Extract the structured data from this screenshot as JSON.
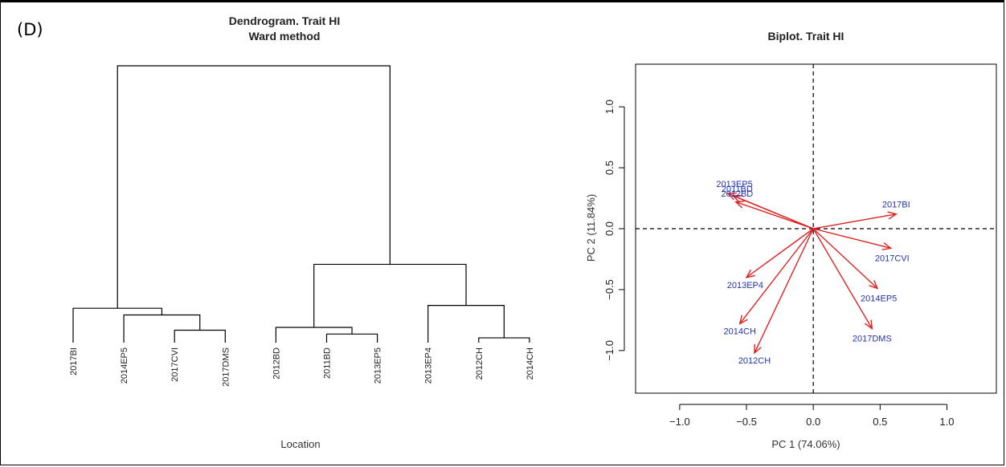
{
  "panel_label": "(D)",
  "chart_data": [
    {
      "type": "dendrogram",
      "title": "Dendrogram. Trait HI",
      "subtitle": "Ward method",
      "xlabel": "Location",
      "leaves": [
        "2017BI",
        "2014EP5",
        "2017CVI",
        "2017DMS",
        "2012BD",
        "2011BD",
        "2013EP5",
        "2013EP4",
        "2012CH",
        "2014CH"
      ],
      "merges": [
        {
          "a": "2012CH",
          "b": "2014CH",
          "height": 0.05
        },
        {
          "a": "2011BD",
          "b": "2013EP5",
          "height": 0.09
        },
        {
          "a": "2017CVI",
          "b": "2017DMS",
          "height": 0.13
        },
        {
          "a": "2012BD",
          "b": "(2011BD,2013EP5)",
          "height": 0.16
        },
        {
          "a": "2014EP5",
          "b": "(2017CVI,2017DMS)",
          "height": 0.29
        },
        {
          "a": "2017BI",
          "b": "(2014EP5,2017CVI,2017DMS)",
          "height": 0.36
        },
        {
          "a": "2013EP4",
          "b": "(2012CH,2014CH)",
          "height": 0.39
        },
        {
          "a": "(2012BD,2011BD,2013EP5)",
          "b": "(2013EP4,2012CH,2014CH)",
          "height": 0.82
        },
        {
          "a": "(2017BI,2014EP5,2017CVI,2017DMS)",
          "b": "(2012BD,2011BD,2013EP5,2013EP4,2012CH,2014CH)",
          "height": 2.9
        }
      ]
    },
    {
      "type": "biplot",
      "title": "Biplot. Trait HI",
      "xlabel": "PC 1 (74.06%)",
      "ylabel": "PC 2 (11.84%)",
      "xlim": [
        -1.33,
        1.37
      ],
      "ylim": [
        -1.35,
        1.35
      ],
      "xticks": [
        -1.0,
        -0.5,
        0.0,
        0.5,
        1.0
      ],
      "yticks": [
        -1.0,
        -0.5,
        0.0,
        0.5,
        1.0
      ],
      "xtick_labels": [
        "−1.0",
        "−0.5",
        "0.0",
        "0.5",
        "1.0"
      ],
      "ytick_labels": [
        "−1.0",
        "−0.5",
        "0.0",
        "0.5",
        "1.0"
      ],
      "reference_lines": {
        "x": 0,
        "y": 0,
        "style": "dashed"
      },
      "arrow_color": "#dd2222",
      "label_color": "#2233aa",
      "vectors": [
        {
          "label": "2013EP5",
          "x": -0.64,
          "y": 0.29,
          "lx": -0.59,
          "ly": 0.37
        },
        {
          "label": "2011BD",
          "x": -0.6,
          "y": 0.27,
          "lx": -0.57,
          "ly": 0.33
        },
        {
          "label": "2012BD",
          "x": -0.58,
          "y": 0.22,
          "lx": -0.57,
          "ly": 0.29
        },
        {
          "label": "2017BI",
          "x": 0.62,
          "y": 0.12,
          "lx": 0.62,
          "ly": 0.2
        },
        {
          "label": "2017CVI",
          "x": 0.58,
          "y": -0.16,
          "lx": 0.59,
          "ly": -0.24
        },
        {
          "label": "2013EP4",
          "x": -0.5,
          "y": -0.4,
          "lx": -0.51,
          "ly": -0.46
        },
        {
          "label": "2014EP5",
          "x": 0.48,
          "y": -0.49,
          "lx": 0.49,
          "ly": -0.57
        },
        {
          "label": "2014CH",
          "x": -0.55,
          "y": -0.78,
          "lx": -0.55,
          "ly": -0.84
        },
        {
          "label": "2017DMS",
          "x": 0.44,
          "y": -0.82,
          "lx": 0.44,
          "ly": -0.9
        },
        {
          "label": "2012CH",
          "x": -0.44,
          "y": -1.02,
          "lx": -0.44,
          "ly": -1.08
        }
      ]
    }
  ]
}
